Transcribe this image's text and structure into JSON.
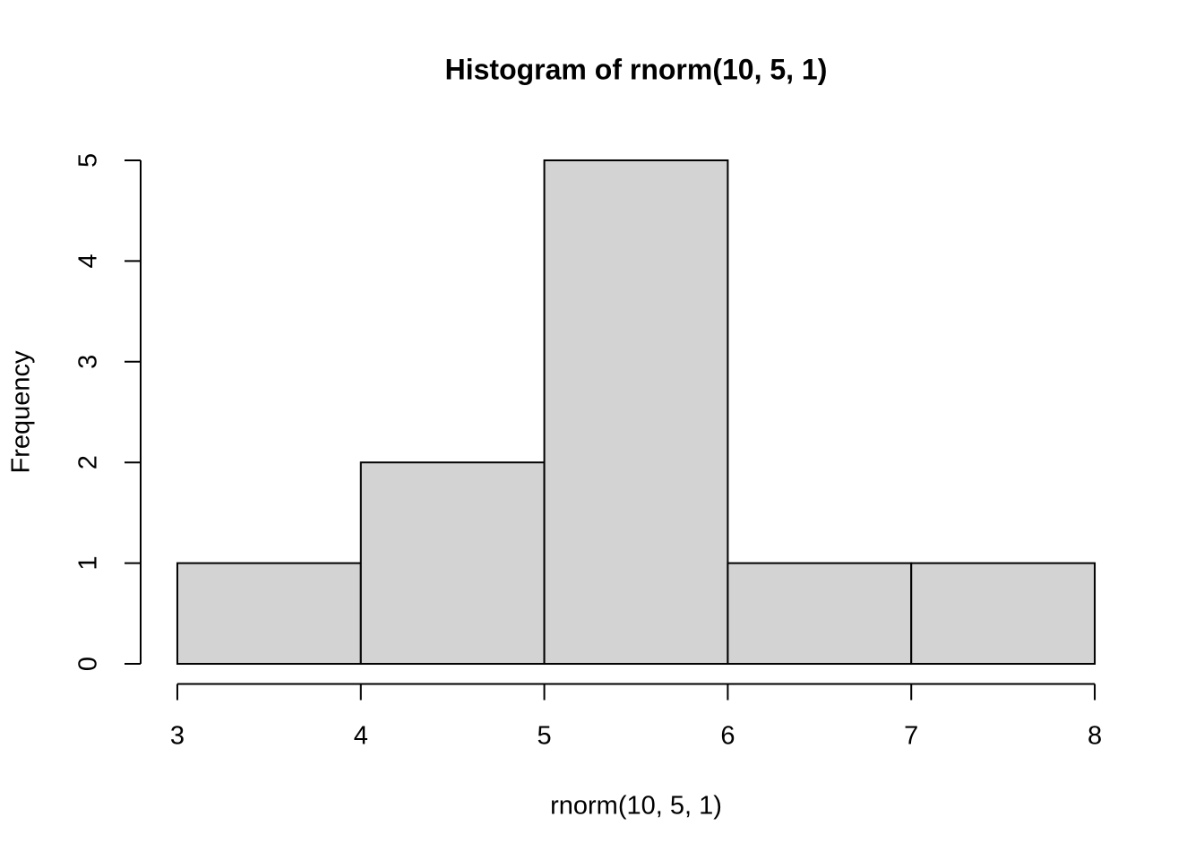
{
  "chart_data": {
    "type": "histogram",
    "title": "Histogram of rnorm(10, 5, 1)",
    "x_label": "rnorm(10, 5, 1)",
    "y_label": "Frequency",
    "bins": [
      3,
      4,
      5,
      6,
      7,
      8
    ],
    "values": [
      1,
      2,
      5,
      1,
      1
    ],
    "color": "#d3d3d3",
    "xlim": [
      2.8,
      8.2
    ],
    "ylim": [
      -0.2,
      5.2
    ],
    "xticks": [
      3,
      4,
      5,
      6,
      7,
      8
    ],
    "yticks": [
      0,
      1,
      2,
      3,
      4,
      5
    ]
  }
}
